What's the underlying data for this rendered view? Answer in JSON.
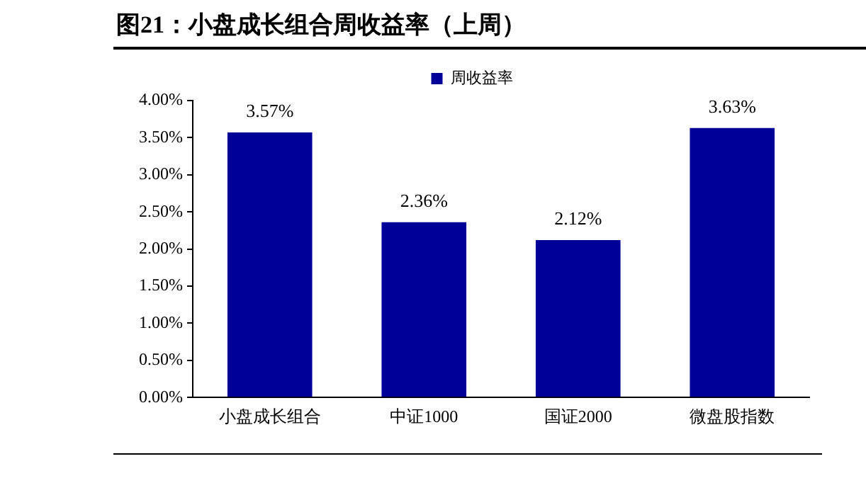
{
  "chart_data": {
    "type": "bar",
    "title": "图21：小盘成长组合周收益率（上周）",
    "categories": [
      "小盘成长组合",
      "中证1000",
      "国证2000",
      "微盘股指数"
    ],
    "series": [
      {
        "name": "周收益率",
        "color": "#000099",
        "values": [
          3.57,
          2.36,
          2.12,
          3.63
        ],
        "value_labels": [
          "3.57%",
          "2.36%",
          "2.12%",
          "3.63%"
        ]
      }
    ],
    "ylim": [
      0,
      4
    ],
    "yticks": [
      {
        "value": 0,
        "label": "0.00%"
      },
      {
        "value": 0.5,
        "label": "0.50%"
      },
      {
        "value": 1,
        "label": "1.00%"
      },
      {
        "value": 1.5,
        "label": "1.50%"
      },
      {
        "value": 2,
        "label": "2.00%"
      },
      {
        "value": 2.5,
        "label": "2.50%"
      },
      {
        "value": 3,
        "label": "3.00%"
      },
      {
        "value": 3.5,
        "label": "3.50%"
      },
      {
        "value": 4,
        "label": "4.00%"
      }
    ],
    "grid": false,
    "legend": "top"
  }
}
